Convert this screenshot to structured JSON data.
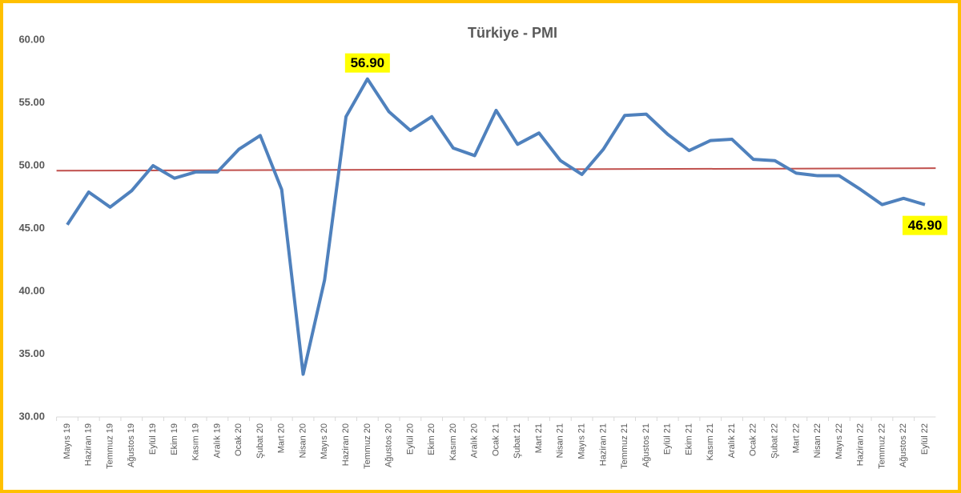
{
  "chart_data": {
    "type": "line",
    "title": "Türkiye - PMI",
    "categories": [
      "Mayıs 19",
      "Haziran 19",
      "Temmuz 19",
      "Ağustos 19",
      "Eylül 19",
      "Ekim 19",
      "Kasım 19",
      "Aralık 19",
      "Ocak 20",
      "Şubat 20",
      "Mart 20",
      "Nisan 20",
      "Mayıs 20",
      "Haziran 20",
      "Temmuz 20",
      "Ağustos 20",
      "Eylül 20",
      "Ekim 20",
      "Kasım 20",
      "Aralık 20",
      "Ocak 21",
      "Şubat 21",
      "Mart 21",
      "Nisan 21",
      "Mayıs 21",
      "Haziran 21",
      "Temmuz 21",
      "Ağustos 21",
      "Eylül 21",
      "Ekim 21",
      "Kasım 21",
      "Aralık 21",
      "Ocak 22",
      "Şubat 22",
      "Mart 22",
      "Nisan 22",
      "Mayıs 22",
      "Haziran 22",
      "Temmuz 22",
      "Ağustos 22",
      "Eylül 22"
    ],
    "values": [
      45.3,
      47.9,
      46.7,
      48.0,
      50.0,
      49.0,
      49.5,
      49.5,
      51.3,
      52.4,
      48.1,
      33.4,
      40.9,
      53.9,
      56.9,
      54.3,
      52.8,
      53.9,
      51.4,
      50.8,
      54.4,
      51.7,
      52.6,
      50.4,
      49.3,
      51.3,
      54.0,
      54.1,
      52.5,
      51.2,
      52.0,
      52.1,
      50.5,
      50.4,
      49.4,
      49.2,
      49.2,
      48.1,
      46.9,
      47.4,
      46.9
    ],
    "value_labels": [
      null,
      null,
      null,
      null,
      null,
      null,
      null,
      null,
      null,
      null,
      null,
      null,
      null,
      null,
      "56.90",
      null,
      null,
      null,
      null,
      null,
      null,
      null,
      null,
      null,
      null,
      null,
      null,
      null,
      null,
      null,
      null,
      null,
      null,
      null,
      null,
      null,
      null,
      null,
      null,
      null,
      "46.90"
    ],
    "color": "#4f81bd",
    "trend_line": {
      "color": "#c0504d",
      "values": [
        49.6,
        49.8
      ]
    },
    "ylim": [
      30,
      60
    ],
    "yticks": [
      {
        "value": 30,
        "label": "30.00"
      },
      {
        "value": 35,
        "label": "35.00"
      },
      {
        "value": 40,
        "label": "40.00"
      },
      {
        "value": 45,
        "label": "45.00"
      },
      {
        "value": 50,
        "label": "50.00"
      },
      {
        "value": 55,
        "label": "55.00"
      },
      {
        "value": 60,
        "label": "60.00"
      }
    ],
    "grid": false
  }
}
